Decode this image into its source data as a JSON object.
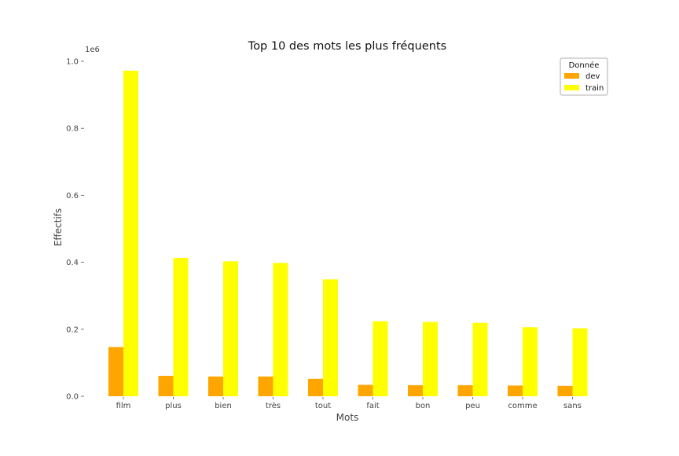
{
  "chart_data": {
    "type": "bar",
    "title": "Top 10 des mots les plus fréquents",
    "xlabel": "Mots",
    "ylabel": "Effectifs",
    "y_offset_label": "1e6",
    "ylim": [
      0,
      1.0
    ],
    "y_ticks": [
      "0.0",
      "0.2",
      "0.4",
      "0.6",
      "0.8",
      "1.0"
    ],
    "categories": [
      "film",
      "plus",
      "bien",
      "très",
      "tout",
      "fait",
      "bon",
      "peu",
      "comme",
      "sans"
    ],
    "legend": {
      "title": "Donnée",
      "position": "top-right"
    },
    "grid": false,
    "series": [
      {
        "name": "dev",
        "color": "#FFA500",
        "values": [
          0.147,
          0.061,
          0.059,
          0.059,
          0.052,
          0.034,
          0.033,
          0.033,
          0.032,
          0.031
        ]
      },
      {
        "name": "train",
        "color": "#FFFF00",
        "values": [
          0.972,
          0.413,
          0.403,
          0.398,
          0.349,
          0.224,
          0.222,
          0.219,
          0.206,
          0.203
        ]
      }
    ]
  }
}
